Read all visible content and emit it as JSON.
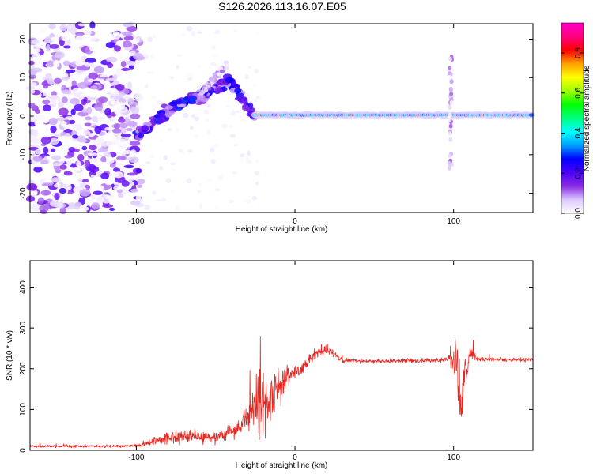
{
  "title": "S126.2026.113.16.07.E05",
  "colors": {
    "snr_line": "#e8251f",
    "axis": "#000000",
    "background": "#ffffff"
  },
  "chart_data": [
    {
      "name": "spectrogram",
      "type": "heatmap",
      "xlabel": "Height of straight line (km)",
      "ylabel": "Frequency (Hz)",
      "xlim": [
        -167,
        150
      ],
      "ylim": [
        -25,
        24
      ],
      "x_ticks": [
        -100,
        0,
        100
      ],
      "x_tick_labels": [
        "-100",
        "0",
        "100"
      ],
      "y_ticks": [
        -20,
        -10,
        0,
        10,
        20
      ],
      "y_tick_labels": [
        "-20",
        "-10",
        "0",
        "10",
        "20"
      ],
      "colorbar": {
        "label": "Normalized spectral amplitude",
        "range": [
          0,
          0.95
        ],
        "ticks": [
          0.0,
          0.2,
          0.4,
          0.6,
          0.8
        ],
        "tick_labels": [
          "0.0",
          "0.2",
          "0.4",
          "0.6",
          "0.8"
        ],
        "colormap": [
          "#ffffff",
          "#dcc8ff",
          "#8a2be2",
          "#4b00ff",
          "#0000ff",
          "#00a0ff",
          "#00ffff",
          "#00ff7f",
          "#00ff00",
          "#a0ff00",
          "#ffff00",
          "#ffa000",
          "#ff0000",
          "#ff0080",
          "#ff00c8"
        ]
      },
      "features": {
        "noise_region_x": [
          -167,
          -97
        ],
        "ridge_rise": [
          [
            -100,
            -5
          ],
          [
            -75,
            3
          ],
          [
            -55,
            6
          ],
          [
            -42,
            9
          ],
          [
            -35,
            6
          ],
          [
            -30,
            2
          ],
          [
            -25,
            0
          ]
        ],
        "band_segment": [
          [
            -60,
            0
          ],
          [
            -42,
            9
          ]
        ],
        "carrier": {
          "x": [
            -25,
            150
          ],
          "freq": 0.3,
          "half_width": 1.5
        },
        "burst": {
          "x": 98,
          "freq_range": [
            -14,
            16
          ]
        }
      }
    },
    {
      "name": "snr",
      "type": "line",
      "xlabel": "Height of straight line (km)",
      "ylabel": "SNR (10 * v/v)",
      "xlim": [
        -167,
        150
      ],
      "ylim": [
        0,
        465
      ],
      "x_ticks": [
        -100,
        0,
        100
      ],
      "x_tick_labels": [
        "-100",
        "0",
        "100"
      ],
      "y_ticks": [
        0,
        100,
        200,
        300,
        400
      ],
      "y_tick_labels": [
        "0",
        "100",
        "200",
        "300",
        "400"
      ],
      "series": [
        {
          "name": "SNR",
          "envelope_x": [
            -167,
            -140,
            -120,
            -97,
            -90,
            -80,
            -70,
            -60,
            -50,
            -40,
            -35,
            -30,
            -25,
            -20,
            -15,
            -10,
            -5,
            0,
            5,
            10,
            15,
            20,
            25,
            30,
            50,
            70,
            90,
            97,
            100,
            103,
            105,
            107,
            110,
            115,
            130,
            150
          ],
          "envelope_mean": [
            10,
            10,
            10,
            12,
            22,
            30,
            35,
            32,
            30,
            45,
            60,
            80,
            110,
            130,
            120,
            150,
            175,
            190,
            205,
            225,
            240,
            250,
            235,
            220,
            218,
            220,
            220,
            222,
            245,
            210,
            95,
            185,
            240,
            225,
            222,
            223
          ],
          "envelope_spread": [
            5,
            5,
            5,
            6,
            14,
            24,
            28,
            25,
            22,
            28,
            40,
            70,
            120,
            150,
            110,
            95,
            55,
            40,
            30,
            25,
            22,
            18,
            14,
            9,
            9,
            9,
            10,
            14,
            120,
            170,
            75,
            150,
            40,
            10,
            9,
            8
          ]
        }
      ]
    }
  ]
}
